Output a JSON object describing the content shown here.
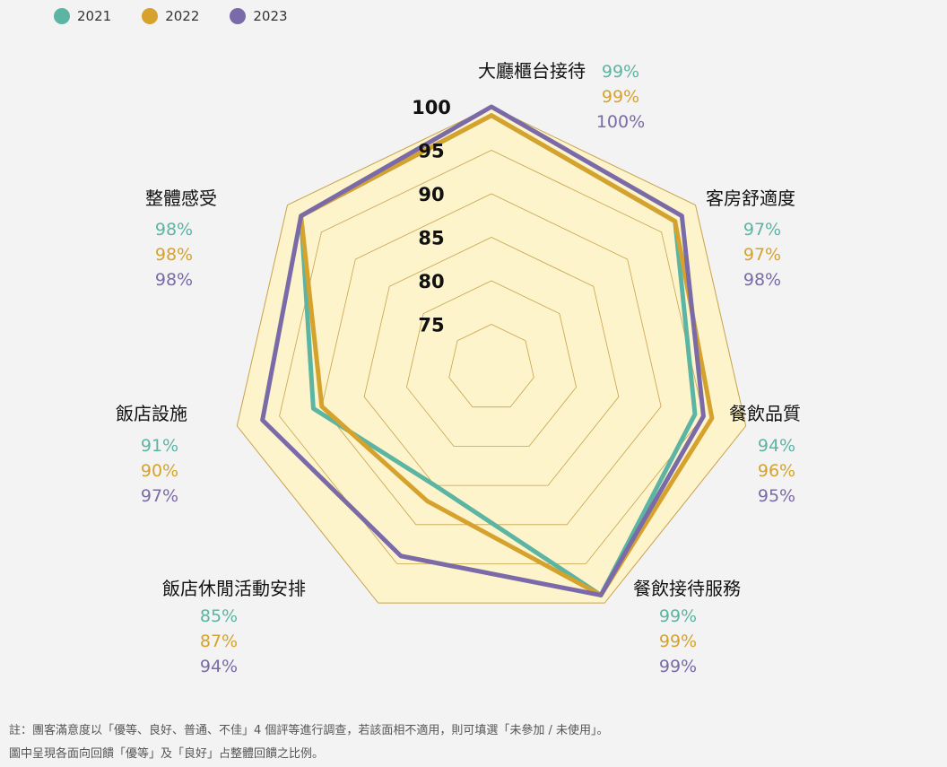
{
  "legend": [
    {
      "label": "2021",
      "color": "#5bb5a2"
    },
    {
      "label": "2022",
      "color": "#d6a22e"
    },
    {
      "label": "2023",
      "color": "#7b6aa8"
    }
  ],
  "chart_data": {
    "type": "radar",
    "title": "",
    "categories": [
      "大廳櫃台接待",
      "客房舒適度",
      "餐飲品質",
      "餐飲接待服務",
      "飯店休閒活動安排",
      "飯店設施",
      "整體感受"
    ],
    "series": [
      {
        "name": "2021",
        "color": "#5bb5a2",
        "values": [
          99,
          97,
          94,
          99,
          85,
          91,
          98
        ],
        "labels": [
          "99%",
          "97%",
          "94%",
          "99%",
          "85%",
          "91%",
          "98%"
        ]
      },
      {
        "name": "2022",
        "color": "#d6a22e",
        "values": [
          99,
          97,
          96,
          99,
          87,
          90,
          98
        ],
        "labels": [
          "99%",
          "97%",
          "96%",
          "99%",
          "87%",
          "90%",
          "98%"
        ]
      },
      {
        "name": "2023",
        "color": "#7b6aa8",
        "values": [
          100,
          98,
          95,
          99,
          94,
          97,
          98
        ],
        "labels": [
          "100%",
          "98%",
          "95%",
          "99%",
          "94%",
          "97%",
          "98%"
        ]
      }
    ],
    "rmin": 70,
    "rmax": 100,
    "ticks": [
      "75",
      "80",
      "85",
      "90",
      "95",
      "100"
    ],
    "grid_color": "#c8a24a",
    "fill_color": "#fdf4cc",
    "legend_position": "top-left"
  },
  "notes": [
    "註：團客滿意度以「優等、良好、普通、不佳」4 個評等進行調查，若該面相不適用，則可填選「未參加 / 未使用」。",
    "圖中呈現各面向回饋「優等」及「良好」占整體回饋之比例。"
  ]
}
